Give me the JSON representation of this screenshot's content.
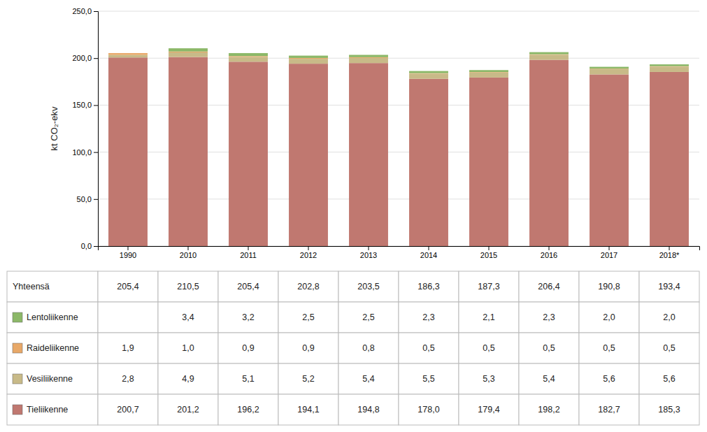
{
  "chart_data": {
    "type": "bar",
    "stacked": true,
    "grid": true,
    "ylabel": "kt CO₂-ekv",
    "categories": [
      "1990",
      "2010",
      "2011",
      "2012",
      "2013",
      "2014",
      "2015",
      "2016",
      "2017",
      "2018*"
    ],
    "ylim": [
      0,
      250
    ],
    "yticks": [
      {
        "value": 0,
        "label": "0,0"
      },
      {
        "value": 50,
        "label": "50,0"
      },
      {
        "value": 100,
        "label": "100,0"
      },
      {
        "value": 150,
        "label": "150,0"
      },
      {
        "value": 200,
        "label": "200,0"
      },
      {
        "value": 250,
        "label": "250,0"
      }
    ],
    "series": [
      {
        "name": "Tieliikenne",
        "color": "#C07870",
        "values": [
          200.7,
          201.2,
          196.2,
          194.1,
          194.8,
          178.0,
          179.4,
          198.2,
          182.7,
          185.3
        ],
        "value_labels": [
          "200,7",
          "201,2",
          "196,2",
          "194,1",
          "194,8",
          "178,0",
          "179,4",
          "198,2",
          "182,7",
          "185,3"
        ]
      },
      {
        "name": "Vesiliikenne",
        "color": "#C8BA88",
        "values": [
          2.8,
          4.9,
          5.1,
          5.2,
          5.4,
          5.5,
          5.3,
          5.4,
          5.6,
          5.6
        ],
        "value_labels": [
          "2,8",
          "4,9",
          "5,1",
          "5,2",
          "5,4",
          "5,5",
          "5,3",
          "5,4",
          "5,6",
          "5,6"
        ]
      },
      {
        "name": "Raideliikenne",
        "color": "#E8A868",
        "values": [
          1.9,
          1.0,
          0.9,
          0.9,
          0.8,
          0.5,
          0.5,
          0.5,
          0.5,
          0.5
        ],
        "value_labels": [
          "1,9",
          "1,0",
          "0,9",
          "0,9",
          "0,8",
          "0,5",
          "0,5",
          "0,5",
          "0,5",
          "0,5"
        ]
      },
      {
        "name": "Lentoliikenne",
        "color": "#8CB868",
        "values": [
          0.0,
          3.4,
          3.2,
          2.5,
          2.5,
          2.3,
          2.1,
          2.3,
          2.0,
          2.0
        ],
        "value_labels": [
          null,
          "3,4",
          "3,2",
          "2,5",
          "2,5",
          "2,3",
          "2,1",
          "2,3",
          "2,0",
          "2,0"
        ]
      }
    ],
    "total_name": "Yhteensä",
    "totals": [
      205.4,
      210.5,
      205.4,
      202.8,
      203.5,
      186.3,
      187.3,
      206.4,
      190.8,
      193.4
    ],
    "total_labels": [
      "205,4",
      "210,5",
      "205,4",
      "202,8",
      "203,5",
      "186,3",
      "187,3",
      "206,4",
      "190,8",
      "193,4"
    ]
  }
}
